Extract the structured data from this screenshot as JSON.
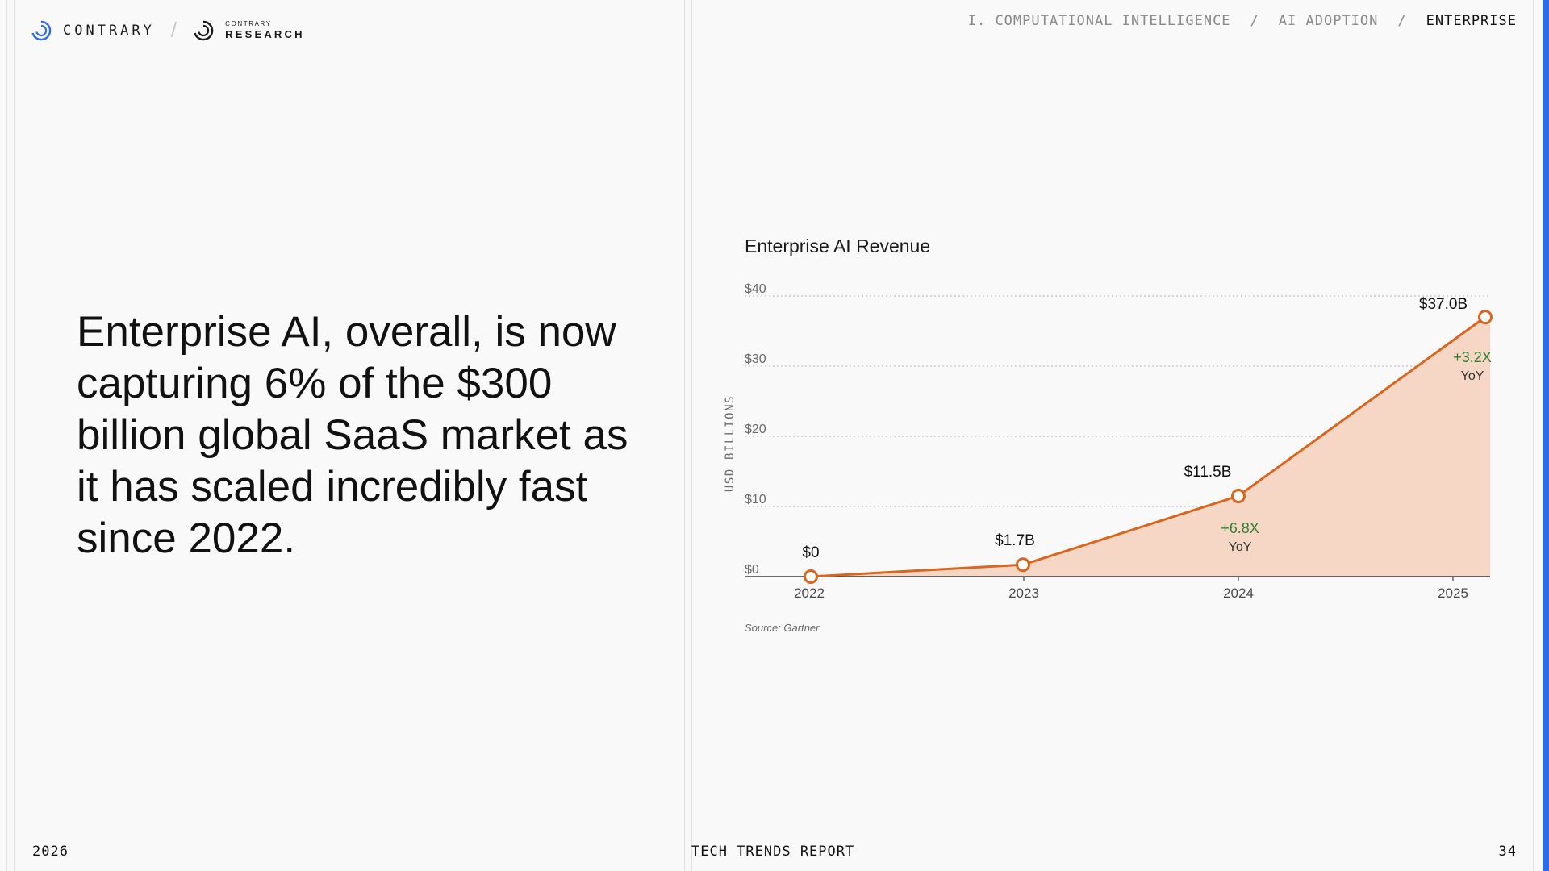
{
  "brand": {
    "name": "CONTRARY",
    "sub_small": "CONTRARY",
    "sub_big": "RESEARCH",
    "separator": "/"
  },
  "breadcrumb": {
    "level1": "I. COMPUTATIONAL INTELLIGENCE",
    "sep": "/",
    "level2": "AI ADOPTION",
    "level3": "ENTERPRISE"
  },
  "headline": "Enterprise AI, overall, is now capturing 6% of the $300 billion global SaaS market as it has scaled incredibly fast since 2022.",
  "footer": {
    "year": "2026",
    "report": "TECH TRENDS REPORT",
    "page": "34"
  },
  "colors": {
    "accent": "#d9661f",
    "fill": "#f6d7c6",
    "growth": "#2e7d32",
    "blue_bar": "#2e6be6"
  },
  "chart_data": {
    "type": "area",
    "title": "Enterprise AI Revenue",
    "ylabel": "USD BILLIONS",
    "xlabel": "",
    "ylim": [
      0,
      40
    ],
    "yticks": [
      0,
      10,
      20,
      30,
      40
    ],
    "ytick_labels": [
      "$0",
      "$10",
      "$20",
      "$30",
      "$40"
    ],
    "categories": [
      "2022",
      "2023",
      "2024",
      "2025"
    ],
    "series": [
      {
        "values": [
          0,
          1.7,
          11.5,
          37.0
        ]
      }
    ],
    "data_labels": [
      "$0",
      "$1.7B",
      "$11.5B",
      "$37.0B"
    ],
    "growth": [
      {
        "index": 2,
        "value": "+6.8X",
        "unit": "YoY"
      },
      {
        "index": 3,
        "value": "+3.2X",
        "unit": "YoY"
      }
    ],
    "source": "Source: Gartner",
    "grid": true
  }
}
